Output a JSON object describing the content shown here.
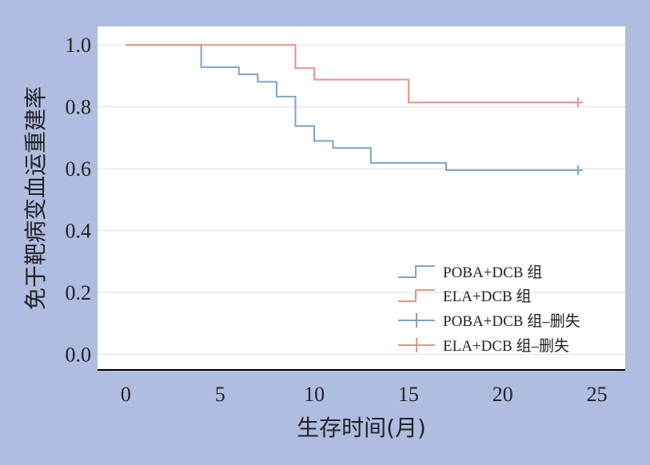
{
  "chart_data": {
    "type": "line",
    "subtype": "kaplan-meier-step",
    "xlabel": "生存时间(月)",
    "ylabel": "免于靶病变血运重建率",
    "xlim": [
      -1.5,
      26.5
    ],
    "ylim": [
      -0.05,
      1.06
    ],
    "xticks": [
      "0",
      "5",
      "10",
      "15",
      "20",
      "25"
    ],
    "yticks": [
      "0.0",
      "0.2",
      "0.4",
      "0.6",
      "0.8",
      "1.0"
    ],
    "grid": "horizontal",
    "legend_position": "bottom-right",
    "legend": [
      "POBA+DCB 组",
      "ELA+DCB 组",
      "POBA+DCB 组–删失",
      "ELA+DCB 组–删失"
    ],
    "series": [
      {
        "name": "POBA+DCB 组",
        "color": "#7fa3c8",
        "steps": [
          [
            0,
            1.0
          ],
          [
            4,
            0.928
          ],
          [
            6,
            0.905
          ],
          [
            7,
            0.881
          ],
          [
            8,
            0.833
          ],
          [
            9,
            0.738
          ],
          [
            10,
            0.69
          ],
          [
            11,
            0.667
          ],
          [
            13,
            0.619
          ],
          [
            17,
            0.595
          ],
          [
            24,
            0.595
          ]
        ],
        "censored": [
          [
            24,
            0.595
          ]
        ]
      },
      {
        "name": "ELA+DCB 组",
        "color": "#e3938a",
        "steps": [
          [
            0,
            1.0
          ],
          [
            9,
            0.925
          ],
          [
            10,
            0.888
          ],
          [
            15,
            0.814
          ],
          [
            24,
            0.814
          ]
        ],
        "censored": [
          [
            24,
            0.814
          ]
        ]
      }
    ]
  }
}
